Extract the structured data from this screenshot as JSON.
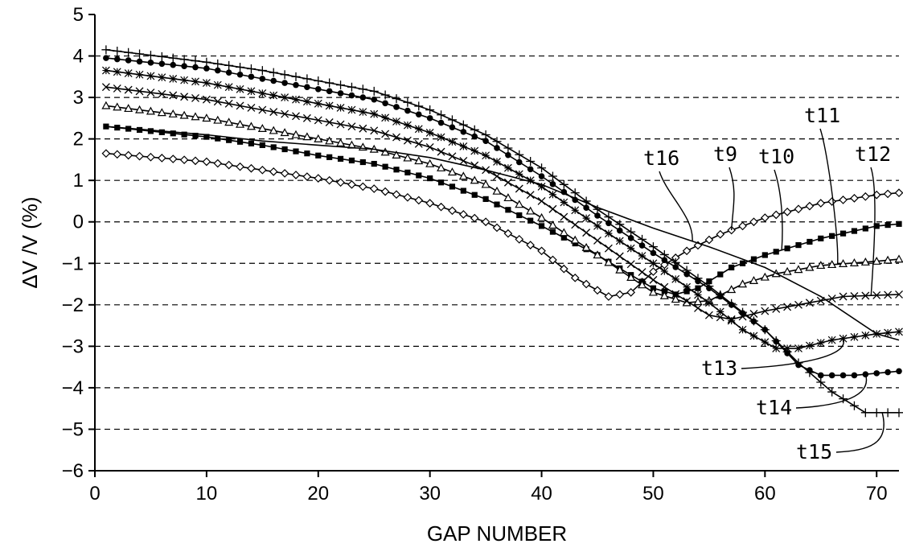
{
  "chart_data": {
    "type": "line",
    "title": "",
    "xlabel": "GAP NUMBER",
    "ylabel": "ΔV /V (%)",
    "xlim": [
      0,
      72
    ],
    "ylim": [
      -6,
      5
    ],
    "xticks": [
      0,
      10,
      20,
      30,
      40,
      50,
      60,
      70
    ],
    "yticks": [
      5,
      4,
      3,
      2,
      1,
      0,
      -1,
      -2,
      -3,
      -4,
      -5,
      -6
    ],
    "grid": "horizontal-dashed",
    "legend": "none",
    "series": [
      {
        "name": "t9",
        "marker": "diamond-open",
        "points": [
          [
            1,
            1.65
          ],
          [
            10,
            1.45
          ],
          [
            15,
            1.25
          ],
          [
            20,
            1.05
          ],
          [
            25,
            0.8
          ],
          [
            30,
            0.45
          ],
          [
            35,
            0.0
          ],
          [
            40,
            -0.7
          ],
          [
            43,
            -1.35
          ],
          [
            46,
            -1.8
          ],
          [
            48,
            -1.7
          ],
          [
            50,
            -1.2
          ],
          [
            53,
            -0.7
          ],
          [
            56,
            -0.3
          ],
          [
            60,
            0.1
          ],
          [
            65,
            0.45
          ],
          [
            70,
            0.65
          ],
          [
            72,
            0.7
          ]
        ]
      },
      {
        "name": "t10",
        "marker": "square-filled",
        "points": [
          [
            1,
            2.3
          ],
          [
            10,
            2.05
          ],
          [
            15,
            1.85
          ],
          [
            20,
            1.6
          ],
          [
            25,
            1.4
          ],
          [
            30,
            1.05
          ],
          [
            35,
            0.55
          ],
          [
            40,
            -0.1
          ],
          [
            45,
            -0.8
          ],
          [
            50,
            -1.6
          ],
          [
            52,
            -1.75
          ],
          [
            54,
            -1.6
          ],
          [
            57,
            -1.1
          ],
          [
            60,
            -0.8
          ],
          [
            65,
            -0.4
          ],
          [
            70,
            -0.1
          ],
          [
            72,
            -0.05
          ]
        ]
      },
      {
        "name": "t11",
        "marker": "triangle-open",
        "points": [
          [
            1,
            2.8
          ],
          [
            10,
            2.5
          ],
          [
            15,
            2.25
          ],
          [
            20,
            2.0
          ],
          [
            25,
            1.75
          ],
          [
            30,
            1.4
          ],
          [
            35,
            0.9
          ],
          [
            40,
            0.1
          ],
          [
            45,
            -0.8
          ],
          [
            50,
            -1.7
          ],
          [
            53,
            -1.95
          ],
          [
            55,
            -1.9
          ],
          [
            58,
            -1.5
          ],
          [
            61,
            -1.25
          ],
          [
            65,
            -1.05
          ],
          [
            70,
            -0.95
          ],
          [
            72,
            -0.9
          ]
        ]
      },
      {
        "name": "t12",
        "marker": "cross-x",
        "points": [
          [
            1,
            3.25
          ],
          [
            10,
            2.95
          ],
          [
            15,
            2.7
          ],
          [
            20,
            2.45
          ],
          [
            25,
            2.2
          ],
          [
            30,
            1.8
          ],
          [
            35,
            1.25
          ],
          [
            40,
            0.5
          ],
          [
            45,
            -0.45
          ],
          [
            50,
            -1.4
          ],
          [
            55,
            -2.25
          ],
          [
            57,
            -2.35
          ],
          [
            60,
            -2.15
          ],
          [
            63,
            -2.0
          ],
          [
            67,
            -1.8
          ],
          [
            72,
            -1.75
          ]
        ]
      },
      {
        "name": "t13",
        "marker": "asterisk",
        "points": [
          [
            1,
            3.65
          ],
          [
            10,
            3.35
          ],
          [
            15,
            3.1
          ],
          [
            20,
            2.85
          ],
          [
            25,
            2.6
          ],
          [
            30,
            2.15
          ],
          [
            35,
            1.6
          ],
          [
            40,
            0.85
          ],
          [
            45,
            -0.1
          ],
          [
            50,
            -1.0
          ],
          [
            55,
            -1.95
          ],
          [
            58,
            -2.6
          ],
          [
            61,
            -3.05
          ],
          [
            63,
            -3.05
          ],
          [
            66,
            -2.85
          ],
          [
            70,
            -2.7
          ],
          [
            72,
            -2.65
          ]
        ]
      },
      {
        "name": "t14",
        "marker": "circle-filled",
        "points": [
          [
            1,
            3.95
          ],
          [
            10,
            3.7
          ],
          [
            15,
            3.45
          ],
          [
            20,
            3.2
          ],
          [
            25,
            2.95
          ],
          [
            30,
            2.5
          ],
          [
            35,
            1.95
          ],
          [
            40,
            1.1
          ],
          [
            45,
            0.15
          ],
          [
            50,
            -0.75
          ],
          [
            55,
            -1.6
          ],
          [
            60,
            -2.6
          ],
          [
            63,
            -3.45
          ],
          [
            65,
            -3.7
          ],
          [
            68,
            -3.7
          ],
          [
            72,
            -3.6
          ]
        ]
      },
      {
        "name": "t15",
        "marker": "plus",
        "points": [
          [
            1,
            4.15
          ],
          [
            10,
            3.85
          ],
          [
            15,
            3.65
          ],
          [
            20,
            3.4
          ],
          [
            25,
            3.15
          ],
          [
            30,
            2.7
          ],
          [
            35,
            2.1
          ],
          [
            40,
            1.3
          ],
          [
            45,
            0.3
          ],
          [
            50,
            -0.6
          ],
          [
            55,
            -1.55
          ],
          [
            60,
            -2.6
          ],
          [
            63,
            -3.4
          ],
          [
            66,
            -4.1
          ],
          [
            69,
            -4.6
          ],
          [
            72,
            -4.6
          ]
        ]
      },
      {
        "name": "t16",
        "marker": "none",
        "points": [
          [
            1,
            2.3
          ],
          [
            10,
            2.1
          ],
          [
            15,
            1.95
          ],
          [
            20,
            1.85
          ],
          [
            25,
            1.75
          ],
          [
            30,
            1.55
          ],
          [
            35,
            1.25
          ],
          [
            40,
            0.9
          ],
          [
            45,
            0.35
          ],
          [
            50,
            -0.15
          ],
          [
            55,
            -0.6
          ],
          [
            60,
            -1.1
          ],
          [
            65,
            -1.8
          ],
          [
            70,
            -2.7
          ],
          [
            72,
            -2.85
          ]
        ]
      }
    ],
    "annotations": [
      {
        "text": "t16",
        "series": "t16"
      },
      {
        "text": "t9",
        "series": "t9"
      },
      {
        "text": "t10",
        "series": "t10"
      },
      {
        "text": "t11",
        "series": "t11"
      },
      {
        "text": "t12",
        "series": "t12"
      },
      {
        "text": "t13",
        "series": "t13"
      },
      {
        "text": "t14",
        "series": "t14"
      },
      {
        "text": "t15",
        "series": "t15"
      }
    ]
  }
}
